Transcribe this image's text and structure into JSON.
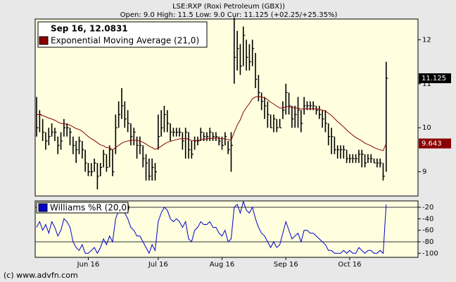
{
  "footer": "(c) www.advfn.com",
  "chart_data": [
    {
      "type": "hlc",
      "title": "LSE:RXP (Roxi Petroleum (GBX))",
      "subtitle": "Open: 9.0 High: 11.5 Low: 9.0 Cur: 11.125 (+02.25/+25.35%)",
      "annotation": "Sep 16, 12.0831",
      "bar_color": "#000000",
      "categories": [
        null,
        null,
        null,
        null,
        null,
        null,
        null,
        null,
        null,
        null,
        null,
        null,
        null,
        null,
        null,
        null,
        null,
        "Jun 16",
        null,
        null,
        null,
        null,
        null,
        null,
        null,
        null,
        null,
        null,
        null,
        null,
        null,
        null,
        null,
        null,
        null,
        null,
        null,
        null,
        null,
        null,
        "Jul 16",
        null,
        null,
        null,
        null,
        null,
        null,
        null,
        null,
        null,
        null,
        null,
        null,
        null,
        null,
        null,
        null,
        null,
        null,
        null,
        null,
        "Aug 16",
        null,
        null,
        null,
        null,
        null,
        null,
        null,
        null,
        null,
        null,
        null,
        null,
        null,
        null,
        null,
        null,
        null,
        null,
        null,
        null,
        "Sep 16",
        null,
        null,
        null,
        null,
        null,
        null,
        null,
        null,
        null,
        null,
        null,
        null,
        null,
        null,
        null,
        null,
        null,
        null,
        null,
        null,
        "Oct 16",
        null,
        null,
        null,
        null,
        null,
        null,
        null,
        null,
        null,
        null,
        null,
        null
      ],
      "high": [
        10.7,
        10.4,
        10.2,
        9.9,
        10.0,
        10.1,
        10.0,
        9.8,
        9.9,
        10.2,
        10.1,
        10.0,
        9.8,
        9.7,
        9.8,
        9.7,
        9.5,
        9.2,
        9.2,
        9.3,
        9.2,
        9.2,
        9.5,
        9.4,
        9.6,
        9.5,
        10.3,
        10.6,
        10.9,
        10.6,
        10.4,
        10.1,
        10.0,
        9.8,
        9.8,
        9.6,
        9.4,
        9.3,
        9.3,
        9.2,
        10.3,
        10.4,
        10.5,
        10.4,
        10.1,
        10.0,
        10.0,
        10.0,
        9.9,
        10.0,
        9.9,
        9.7,
        9.8,
        9.8,
        10.0,
        9.9,
        9.9,
        10.0,
        9.9,
        9.9,
        9.8,
        9.8,
        9.9,
        9.7,
        9.9,
        12.5,
        12.2,
        11.9,
        12.3,
        12.0,
        11.9,
        12.0,
        11.7,
        11.2,
        10.8,
        10.7,
        10.6,
        10.3,
        10.3,
        10.2,
        10.2,
        10.6,
        11.0,
        10.8,
        10.5,
        10.5,
        10.7,
        10.4,
        10.7,
        10.6,
        10.6,
        10.6,
        10.5,
        10.5,
        10.4,
        10.4,
        10.1,
        10.0,
        9.8,
        9.6,
        9.6,
        9.6,
        9.5,
        9.4,
        9.4,
        9.4,
        9.5,
        9.5,
        9.4,
        9.4,
        9.4,
        9.3,
        9.3,
        9.3,
        9.2,
        11.5
      ],
      "low": [
        9.8,
        9.9,
        9.7,
        9.5,
        9.6,
        9.8,
        9.7,
        9.4,
        9.5,
        9.8,
        9.8,
        9.6,
        9.4,
        9.2,
        9.4,
        9.3,
        9.0,
        8.9,
        8.9,
        9.0,
        8.6,
        8.9,
        9.1,
        9.0,
        9.1,
        8.9,
        9.4,
        10.0,
        10.2,
        10.0,
        9.9,
        9.6,
        9.6,
        9.3,
        9.4,
        9.1,
        8.8,
        8.8,
        8.8,
        8.8,
        9.5,
        9.8,
        9.9,
        9.9,
        9.7,
        9.8,
        9.8,
        9.8,
        9.5,
        9.3,
        9.3,
        9.3,
        9.5,
        9.6,
        9.7,
        9.7,
        9.7,
        9.7,
        9.7,
        9.7,
        9.6,
        9.5,
        9.6,
        9.4,
        9.0,
        11.0,
        11.3,
        11.2,
        11.4,
        11.3,
        11.3,
        11.4,
        10.9,
        10.6,
        10.4,
        10.2,
        10.0,
        10.0,
        9.9,
        9.9,
        10.0,
        10.2,
        10.3,
        10.3,
        10.0,
        10.0,
        10.0,
        9.9,
        10.3,
        10.4,
        10.4,
        10.4,
        10.3,
        10.2,
        10.0,
        9.9,
        9.6,
        9.4,
        9.4,
        9.3,
        9.3,
        9.3,
        9.2,
        9.2,
        9.2,
        9.2,
        9.2,
        9.1,
        9.1,
        9.2,
        9.2,
        9.2,
        9.1,
        9.1,
        8.8,
        9.0
      ],
      "close": [
        10.0,
        10.3,
        9.9,
        9.7,
        9.8,
        9.9,
        9.9,
        9.6,
        9.7,
        10.0,
        10.0,
        9.9,
        9.6,
        9.5,
        9.7,
        9.5,
        9.2,
        9.0,
        9.0,
        9.2,
        8.9,
        9.1,
        9.4,
        9.1,
        9.5,
        9.0,
        10.0,
        10.3,
        10.5,
        10.2,
        10.1,
        9.8,
        9.9,
        9.6,
        9.6,
        9.3,
        9.2,
        8.9,
        9.1,
        9.0,
        9.8,
        10.0,
        10.3,
        10.1,
        9.9,
        9.9,
        9.9,
        9.9,
        9.7,
        9.9,
        9.5,
        9.4,
        9.7,
        9.7,
        9.9,
        9.8,
        9.8,
        9.9,
        9.8,
        9.8,
        9.7,
        9.6,
        9.8,
        9.5,
        9.6,
        11.6,
        11.8,
        11.4,
        12.1,
        11.6,
        11.5,
        11.8,
        11.1,
        10.8,
        10.6,
        10.5,
        10.3,
        10.0,
        10.2,
        10.0,
        10.0,
        10.4,
        10.8,
        10.5,
        10.2,
        10.3,
        10.4,
        10.1,
        10.5,
        10.5,
        10.5,
        10.5,
        10.4,
        10.3,
        10.2,
        10.1,
        9.8,
        9.8,
        9.5,
        9.5,
        9.5,
        9.5,
        9.3,
        9.3,
        9.3,
        9.3,
        9.4,
        9.4,
        9.2,
        9.3,
        9.3,
        9.2,
        9.2,
        9.2,
        8.9,
        11.125
      ],
      "series": [
        {
          "name": "Exponential Moving Average (21,0)",
          "color": "#8b0000",
          "values": [
            10.3,
            10.3,
            10.28,
            10.25,
            10.22,
            10.2,
            10.17,
            10.13,
            10.1,
            10.09,
            10.08,
            10.06,
            10.02,
            9.98,
            9.96,
            9.92,
            9.86,
            9.8,
            9.75,
            9.71,
            9.66,
            9.61,
            9.59,
            9.55,
            9.55,
            9.5,
            9.55,
            9.6,
            9.65,
            9.68,
            9.7,
            9.71,
            9.72,
            9.71,
            9.7,
            9.67,
            9.63,
            9.58,
            9.55,
            9.51,
            9.54,
            9.58,
            9.63,
            9.67,
            9.69,
            9.71,
            9.73,
            9.75,
            9.75,
            9.76,
            9.74,
            9.71,
            9.71,
            9.71,
            9.73,
            9.74,
            9.75,
            9.76,
            9.76,
            9.77,
            9.76,
            9.75,
            9.75,
            9.73,
            9.72,
            9.89,
            10.06,
            10.18,
            10.35,
            10.46,
            10.55,
            10.66,
            10.7,
            10.71,
            10.7,
            10.68,
            10.64,
            10.58,
            10.54,
            10.49,
            10.45,
            10.45,
            10.48,
            10.48,
            10.46,
            10.45,
            10.45,
            10.42,
            10.43,
            10.43,
            10.43,
            10.43,
            10.43,
            10.42,
            10.4,
            10.38,
            10.33,
            10.28,
            10.21,
            10.14,
            10.08,
            10.02,
            9.95,
            9.89,
            9.83,
            9.78,
            9.74,
            9.7,
            9.65,
            9.62,
            9.59,
            9.55,
            9.52,
            9.5,
            9.48,
            9.643
          ]
        }
      ],
      "ylim": [
        8.45,
        12.47
      ],
      "yticks": [
        9,
        10,
        11,
        12
      ]
    },
    {
      "type": "line",
      "series": [
        {
          "name": "Williams %R (20,0)",
          "color": "#0000cc",
          "values": [
            -55,
            -45,
            -60,
            -50,
            -65,
            -45,
            -55,
            -70,
            -60,
            -40,
            -45,
            -55,
            -80,
            -90,
            -95,
            -85,
            -100,
            -100,
            -95,
            -90,
            -100,
            -90,
            -75,
            -85,
            -70,
            -80,
            -40,
            -25,
            -15,
            -30,
            -40,
            -55,
            -60,
            -70,
            -70,
            -80,
            -90,
            -100,
            -85,
            -95,
            -45,
            -30,
            -20,
            -25,
            -40,
            -45,
            -40,
            -45,
            -55,
            -45,
            -75,
            -80,
            -60,
            -55,
            -45,
            -50,
            -50,
            -45,
            -55,
            -55,
            -65,
            -70,
            -60,
            -80,
            -75,
            -20,
            -15,
            -30,
            -10,
            -25,
            -30,
            -20,
            -40,
            -55,
            -65,
            -70,
            -80,
            -90,
            -80,
            -90,
            -85,
            -65,
            -45,
            -60,
            -75,
            -70,
            -65,
            -80,
            -60,
            -60,
            -65,
            -65,
            -70,
            -75,
            -80,
            -85,
            -95,
            -95,
            -100,
            -100,
            -100,
            -95,
            -100,
            -95,
            -100,
            -100,
            -90,
            -95,
            -100,
            -95,
            -95,
            -100,
            -100,
            -95,
            -100,
            -15
          ]
        }
      ],
      "reference_lines": [
        -20,
        -80
      ],
      "ylim": [
        -107,
        -9
      ],
      "yticks": [
        -20,
        -40,
        -60,
        -80,
        -100
      ]
    }
  ]
}
